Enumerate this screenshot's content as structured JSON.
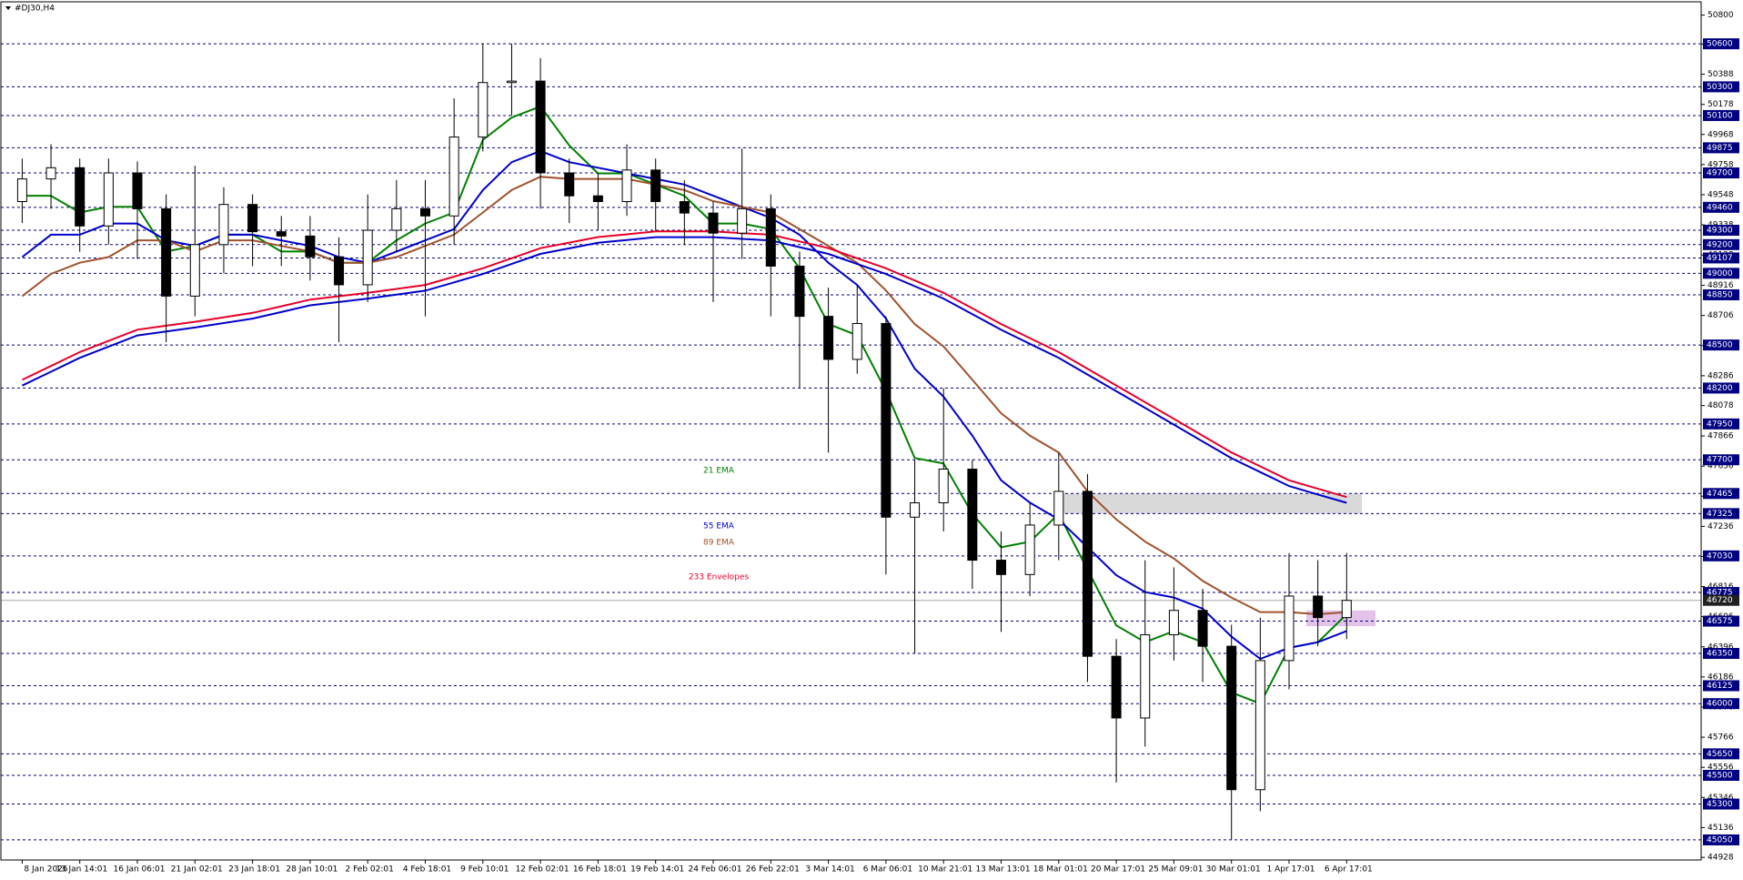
{
  "chart_data": {
    "type": "candlestick",
    "title": "#DJ30,H4",
    "categories": [
      "8 Jan 2026",
      null,
      "13 Jan 14:01",
      null,
      "16 Jan 06:01",
      null,
      "21 Jan 02:01",
      null,
      "23 Jan 18:01",
      null,
      "28 Jan 10:01",
      null,
      "2 Feb 02:01",
      null,
      "4 Feb 18:01",
      null,
      "9 Feb 10:01",
      null,
      "12 Feb 02:01",
      null,
      "16 Feb 18:01",
      null,
      "19 Feb 14:01",
      null,
      "24 Feb 06:01",
      null,
      "26 Feb 22:01",
      null,
      "3 Mar 14:01",
      null,
      "6 Mar 06:01",
      null,
      "10 Mar 21:01",
      null,
      "13 Mar 13:01",
      null,
      "18 Mar 01:01",
      null,
      "20 Mar 17:01",
      null,
      "25 Mar 09:01",
      null,
      "30 Mar 01:01",
      null,
      "1 Apr 17:01",
      null,
      "6 Apr 17:01"
    ],
    "open": [
      49500,
      49658,
      49736,
      49330,
      49700,
      49450,
      48841,
      49200,
      49480,
      49290,
      49260,
      49115,
      48920,
      49300,
      49450,
      49400,
      49950,
      50330,
      50340,
      49700,
      49540,
      49500,
      49720,
      49500,
      49420,
      49280,
      49450,
      49050,
      48700,
      48400,
      48650,
      47300,
      47400,
      47635,
      47000,
      46900,
      47245,
      47480,
      46330,
      45900,
      46480,
      46650,
      46400,
      45400,
      46300,
      46750,
      46600
    ],
    "high": [
      49800,
      49900,
      49800,
      49800,
      49780,
      49550,
      49750,
      49600,
      49550,
      49400,
      49400,
      49250,
      49550,
      49650,
      49650,
      50220,
      50600,
      50600,
      50500,
      49800,
      49700,
      49900,
      49800,
      49650,
      49500,
      49870,
      49550,
      49150,
      48900,
      48920,
      48700,
      47700,
      48200,
      47700,
      47200,
      47400,
      47750,
      47600,
      46450,
      47000,
      46950,
      46800,
      46550,
      46600,
      47050,
      47000,
      47050
    ],
    "low": [
      49350,
      49450,
      49150,
      49200,
      49100,
      48520,
      48700,
      49000,
      49050,
      49050,
      48950,
      48520,
      48800,
      49150,
      48700,
      49200,
      49850,
      50100,
      49450,
      49350,
      49300,
      49400,
      49300,
      49200,
      48800,
      49100,
      48700,
      48200,
      47750,
      48300,
      46900,
      46350,
      47200,
      46800,
      46500,
      46750,
      47000,
      46150,
      45450,
      45700,
      46300,
      46150,
      45050,
      45250,
      46100,
      46400,
      46450
    ],
    "close": [
      49658,
      49736,
      49330,
      49700,
      49450,
      48841,
      49200,
      49480,
      49290,
      49260,
      49115,
      48920,
      49300,
      49450,
      49400,
      49950,
      50330,
      50340,
      49700,
      49540,
      49500,
      49720,
      49500,
      49420,
      49280,
      49450,
      49050,
      48700,
      48400,
      48650,
      47300,
      47400,
      47635,
      47000,
      46900,
      47245,
      47480,
      46330,
      45900,
      46480,
      46650,
      46400,
      45400,
      46300,
      46750,
      46600,
      46720
    ],
    "series": [
      {
        "color": "#008000",
        "values": [
          49541,
          49541,
          49424,
          49463,
          49463,
          49152,
          49191,
          49269,
          49269,
          49152,
          49152,
          49074,
          49074,
          49230,
          49347,
          49424,
          49930,
          50086,
          50164,
          49891,
          49697,
          49697,
          49619,
          49541,
          49347,
          49347,
          49308,
          49035,
          48646,
          48568,
          48179,
          47712,
          47674,
          47323,
          47090,
          47129,
          47323,
          46934,
          46545,
          46428,
          46506,
          46428,
          46078,
          46000,
          46389,
          46428,
          46623
        ]
      },
      {
        "color": "#0000cd",
        "values": [
          49113,
          49269,
          49269,
          49347,
          49347,
          49230,
          49191,
          49269,
          49269,
          49230,
          49191,
          49113,
          49074,
          49152,
          49230,
          49308,
          49580,
          49775,
          49852,
          49775,
          49736,
          49697,
          49658,
          49619,
          49541,
          49463,
          49386,
          49269,
          49074,
          48919,
          48685,
          48335,
          48140,
          47868,
          47557,
          47401,
          47284,
          47090,
          46895,
          46778,
          46740,
          46662,
          46467,
          46312,
          46389,
          46428,
          46506
        ]
      },
      {
        "color": "#a0522d",
        "values": [
          48841,
          48996,
          49074,
          49113,
          49230,
          49230,
          49152,
          49230,
          49230,
          49191,
          49152,
          49074,
          49074,
          49113,
          49191,
          49269,
          49424,
          49580,
          49673,
          49658,
          49658,
          49658,
          49619,
          49580,
          49503,
          49463,
          49424,
          49308,
          49191,
          49074,
          48880,
          48646,
          48490,
          48257,
          48024,
          47868,
          47751,
          47479,
          47284,
          47129,
          47012,
          46856,
          46740,
          46638,
          46638,
          46623,
          46638
        ]
      },
      {
        "color": "#e8002a",
        "values": [
          48257,
          48354,
          48451,
          48529,
          48607,
          48635,
          48662,
          48693,
          48724,
          48770,
          48817,
          48840,
          48864,
          48891,
          48919,
          48977,
          49035,
          49105,
          49175,
          49214,
          49253,
          49272,
          49292,
          49292,
          49292,
          49280,
          49269,
          49222,
          49175,
          49105,
          49035,
          48950,
          48864,
          48755,
          48646,
          48548,
          48451,
          48334,
          48218,
          48101,
          47985,
          47868,
          47751,
          47654,
          47557,
          47498,
          47440
        ]
      },
      {
        "color": "#0000cd",
        "values": [
          48217,
          48314,
          48411,
          48489,
          48567,
          48595,
          48622,
          48653,
          48684,
          48730,
          48777,
          48800,
          48824,
          48851,
          48879,
          48937,
          48995,
          49065,
          49135,
          49174,
          49213,
          49232,
          49252,
          49252,
          49252,
          49240,
          49229,
          49182,
          49135,
          49065,
          48995,
          48910,
          48824,
          48715,
          48606,
          48508,
          48411,
          48294,
          48178,
          48061,
          47945,
          47828,
          47711,
          47614,
          47517,
          47458,
          47400
        ]
      }
    ],
    "annotations": [
      {
        "text": "21 EMA",
        "color": "#008000"
      },
      {
        "text": "55 EMA",
        "color": "#0000cd"
      },
      {
        "text": "89 EMA",
        "color": "#a0522d"
      },
      {
        "text": "233 Envelopes",
        "color": "#e8002a"
      }
    ],
    "levels": [
      50600,
      50300,
      50100,
      49875,
      49700,
      49460,
      49300,
      49200,
      49107,
      49000,
      48850,
      48500,
      48200,
      47950,
      47700,
      47465,
      47325,
      47030,
      46775,
      46575,
      46350,
      46125,
      46000,
      45650,
      45500,
      45300,
      45050
    ],
    "level_color": "#000080",
    "current_price": 46720,
    "zones": [
      {
        "ymin": 47325,
        "ymax": 47465,
        "color": "#d9d9d9"
      },
      {
        "ymin": 46540,
        "ymax": 46650,
        "color": "#e3c4e8"
      }
    ],
    "ylim": [
      44910,
      50880
    ],
    "yticks": [
      44928,
      45136,
      45346,
      45556,
      45766,
      45976,
      46186,
      46396,
      46606,
      46816,
      47026,
      47236,
      47446,
      47656,
      47866,
      48078,
      48286,
      48496,
      48706,
      48916,
      49128,
      49338,
      49548,
      49758,
      49968,
      50178,
      50388,
      50598,
      50800
    ]
  }
}
